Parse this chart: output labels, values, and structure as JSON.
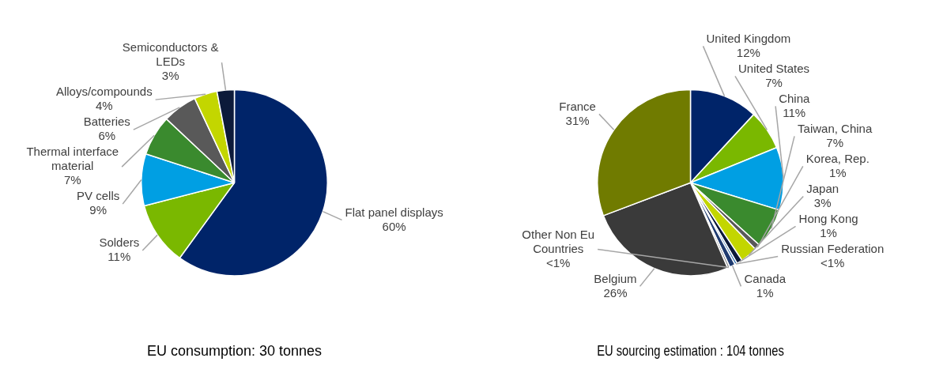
{
  "chart_data": [
    {
      "type": "pie",
      "title": "EU consumption: 30 tonnes",
      "categories": [
        "Flat panel displays",
        "Solders",
        "PV cells",
        "Thermal interface material",
        "Batteries",
        "Alloys/compounds",
        "Semiconductors & LEDs"
      ],
      "values": [
        60,
        11,
        9,
        7,
        6,
        4,
        3
      ],
      "colors": [
        "#002469",
        "#7ab800",
        "#009fe3",
        "#3a8a2e",
        "#595959",
        "#c3d600",
        "#0c1a3a"
      ],
      "value_labels": [
        "60%",
        "11%",
        "9%",
        "7%",
        "6%",
        "4%",
        "3%"
      ]
    },
    {
      "type": "pie",
      "title": "EU sourcing estimation : 104 tonnes",
      "categories": [
        "United Kingdom",
        "United States",
        "China",
        "Taiwan, China",
        "Korea, Rep.",
        "Japan",
        "Hong Kong",
        "Russian Federation",
        "Canada",
        "Other Non Eu Countries",
        "Belgium",
        "France"
      ],
      "values": [
        12,
        7,
        11,
        7,
        1,
        3,
        1,
        0.4,
        1,
        0.4,
        26,
        31
      ],
      "colors": [
        "#002469",
        "#7ab800",
        "#009fe3",
        "#3a8a2e",
        "#595959",
        "#c3d600",
        "#0c1a3a",
        "#2f6fb0",
        "#1f3b70",
        "#8a8a8a",
        "#3a3a3a",
        "#707b00"
      ],
      "value_labels": [
        "12%",
        "7%",
        "11%",
        "7%",
        "1%",
        "3%",
        "1%",
        "<1%",
        "1%",
        "<1%",
        "26%",
        "31%"
      ]
    }
  ]
}
